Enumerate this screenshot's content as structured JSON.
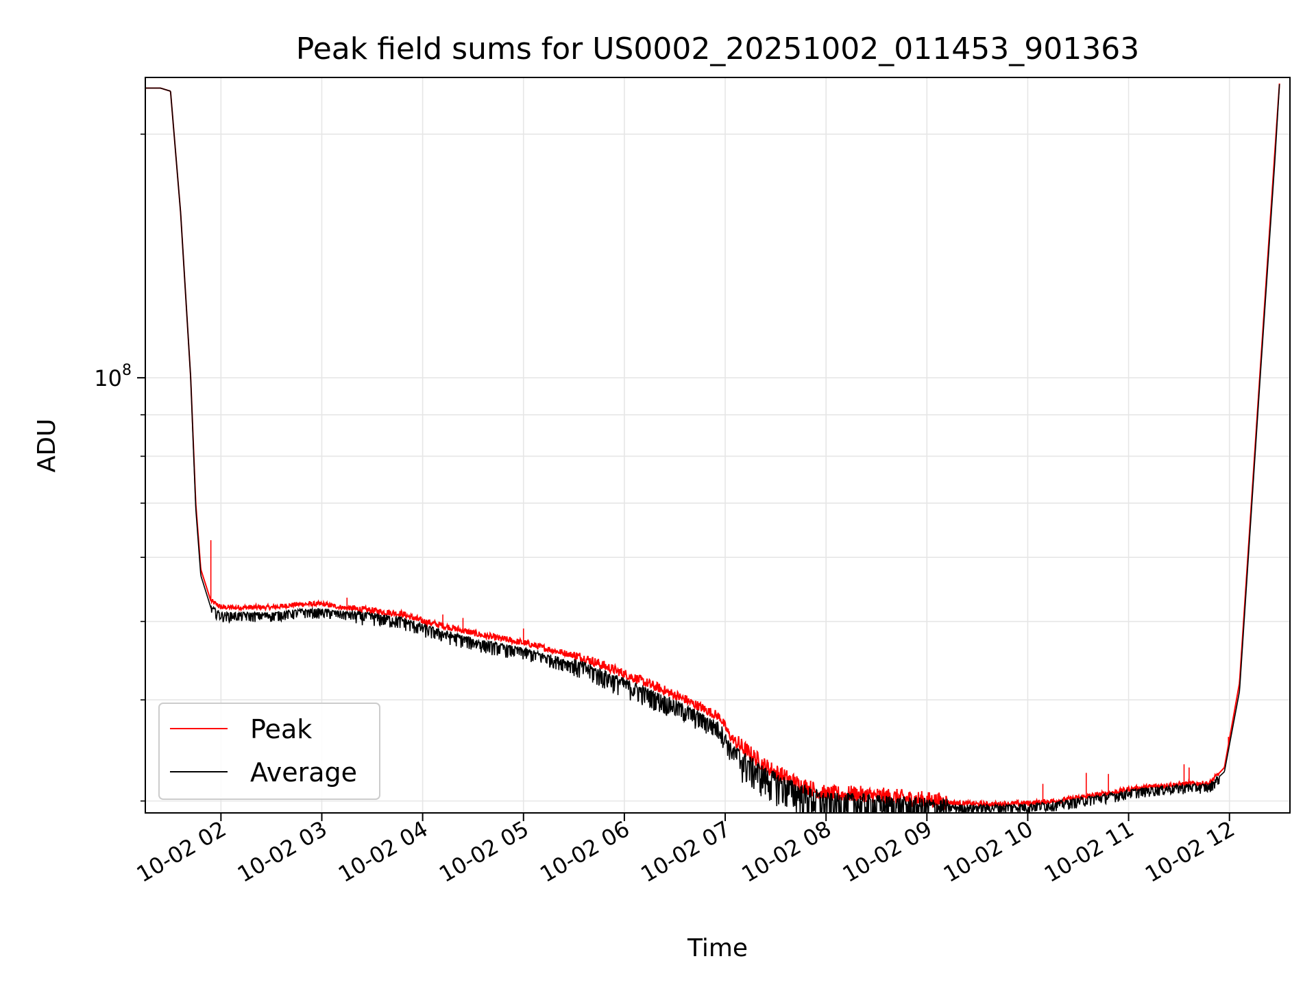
{
  "chart_data": {
    "type": "line",
    "title": "Peak field sums for US0002_20251002_011453_901363",
    "xlabel": "Time",
    "ylabel": "ADU",
    "yscale": "log",
    "ylim": [
      29000000,
      235000000
    ],
    "xlim_hours": [
      1.25,
      12.6
    ],
    "x_ticks": [
      {
        "hour": 2,
        "label": "10-02 02"
      },
      {
        "hour": 3,
        "label": "10-02 03"
      },
      {
        "hour": 4,
        "label": "10-02 04"
      },
      {
        "hour": 5,
        "label": "10-02 05"
      },
      {
        "hour": 6,
        "label": "10-02 06"
      },
      {
        "hour": 7,
        "label": "10-02 07"
      },
      {
        "hour": 8,
        "label": "10-02 08"
      },
      {
        "hour": 9,
        "label": "10-02 09"
      },
      {
        "hour": 10,
        "label": "10-02 10"
      },
      {
        "hour": 11,
        "label": "10-02 11"
      },
      {
        "hour": 12,
        "label": "10-02 12"
      }
    ],
    "y_major_ticks": [
      {
        "value": 100000000,
        "base": "10",
        "exponent": "8"
      }
    ],
    "y_minor_ticks": [
      30000000,
      40000000,
      50000000,
      60000000,
      70000000,
      80000000,
      90000000,
      200000000
    ],
    "grid": true,
    "legend_position": "lower-left",
    "series": [
      {
        "name": "Peak",
        "color": "#ff0000",
        "x_hours": [
          1.25,
          1.4,
          1.5,
          1.6,
          1.7,
          1.75,
          1.8,
          1.9,
          2.0,
          2.2,
          2.5,
          2.8,
          3.0,
          3.2,
          3.5,
          3.8,
          4.0,
          4.3,
          4.6,
          5.0,
          5.3,
          5.6,
          6.0,
          6.3,
          6.6,
          6.95,
          7.05,
          7.15,
          7.4,
          7.7,
          8.0,
          8.3,
          8.6,
          9.0,
          9.3,
          9.6,
          10.0,
          10.3,
          10.6,
          10.9,
          11.0,
          11.3,
          11.6,
          11.8,
          11.95,
          12.1,
          12.3,
          12.45,
          12.5
        ],
        "values": [
          228000000,
          228000000,
          226000000,
          160000000,
          100000000,
          70000000,
          58000000,
          53000000,
          52000000,
          52000000,
          52000000,
          52500000,
          52500000,
          52000000,
          51500000,
          51000000,
          50000000,
          49000000,
          48000000,
          47000000,
          46000000,
          45000000,
          43000000,
          41500000,
          40000000,
          38000000,
          36000000,
          35000000,
          33000000,
          31500000,
          30500000,
          30500000,
          30300000,
          30000000,
          29800000,
          29700000,
          29800000,
          30000000,
          30400000,
          30800000,
          31000000,
          31300000,
          31500000,
          31500000,
          33000000,
          42000000,
          100000000,
          190000000,
          235000000
        ],
        "spikes": [
          {
            "hour": 1.9,
            "value": 63000000
          },
          {
            "hour": 3.25,
            "value": 53500000
          },
          {
            "hour": 4.2,
            "value": 51000000
          },
          {
            "hour": 4.4,
            "value": 50500000
          },
          {
            "hour": 5.0,
            "value": 49000000
          },
          {
            "hour": 10.15,
            "value": 31500000
          },
          {
            "hour": 10.58,
            "value": 32500000
          },
          {
            "hour": 10.8,
            "value": 32400000
          },
          {
            "hour": 11.55,
            "value": 33300000
          },
          {
            "hour": 11.6,
            "value": 33000000
          },
          {
            "hour": 11.99,
            "value": 36000000
          }
        ]
      },
      {
        "name": "Average",
        "color": "#000000",
        "x_hours": [
          1.25,
          1.4,
          1.5,
          1.6,
          1.7,
          1.75,
          1.8,
          1.9,
          2.0,
          2.2,
          2.5,
          2.8,
          3.0,
          3.2,
          3.5,
          3.8,
          4.0,
          4.3,
          4.6,
          5.0,
          5.3,
          5.6,
          6.0,
          6.3,
          6.6,
          6.95,
          7.05,
          7.15,
          7.4,
          7.7,
          8.0,
          8.3,
          8.6,
          9.0,
          9.3,
          9.6,
          10.0,
          10.3,
          10.6,
          10.9,
          11.0,
          11.3,
          11.6,
          11.8,
          11.95,
          12.1,
          12.3,
          12.45,
          12.5
        ],
        "values": [
          228000000,
          228000000,
          226000000,
          160000000,
          100000000,
          69000000,
          57000000,
          52000000,
          51000000,
          51000000,
          51000000,
          51500000,
          51500000,
          51200000,
          50800000,
          50200000,
          49200000,
          48000000,
          47000000,
          46000000,
          45000000,
          44000000,
          42000000,
          40500000,
          39000000,
          37000000,
          35000000,
          34000000,
          32300000,
          31000000,
          30000000,
          30000000,
          29800000,
          29600000,
          29500000,
          29500000,
          29600000,
          29800000,
          30200000,
          30600000,
          30800000,
          31100000,
          31300000,
          31300000,
          32600000,
          41000000,
          98000000,
          185000000,
          235000000
        ]
      }
    ]
  }
}
